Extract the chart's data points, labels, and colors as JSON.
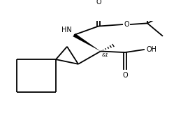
{
  "bg_color": "#ffffff",
  "lw": 1.3,
  "fs": 7,
  "fs_small": 5,
  "figsize": [
    2.72,
    1.82
  ],
  "dpi": 100,
  "xlim": [
    0,
    272
  ],
  "ylim": [
    0,
    182
  ]
}
